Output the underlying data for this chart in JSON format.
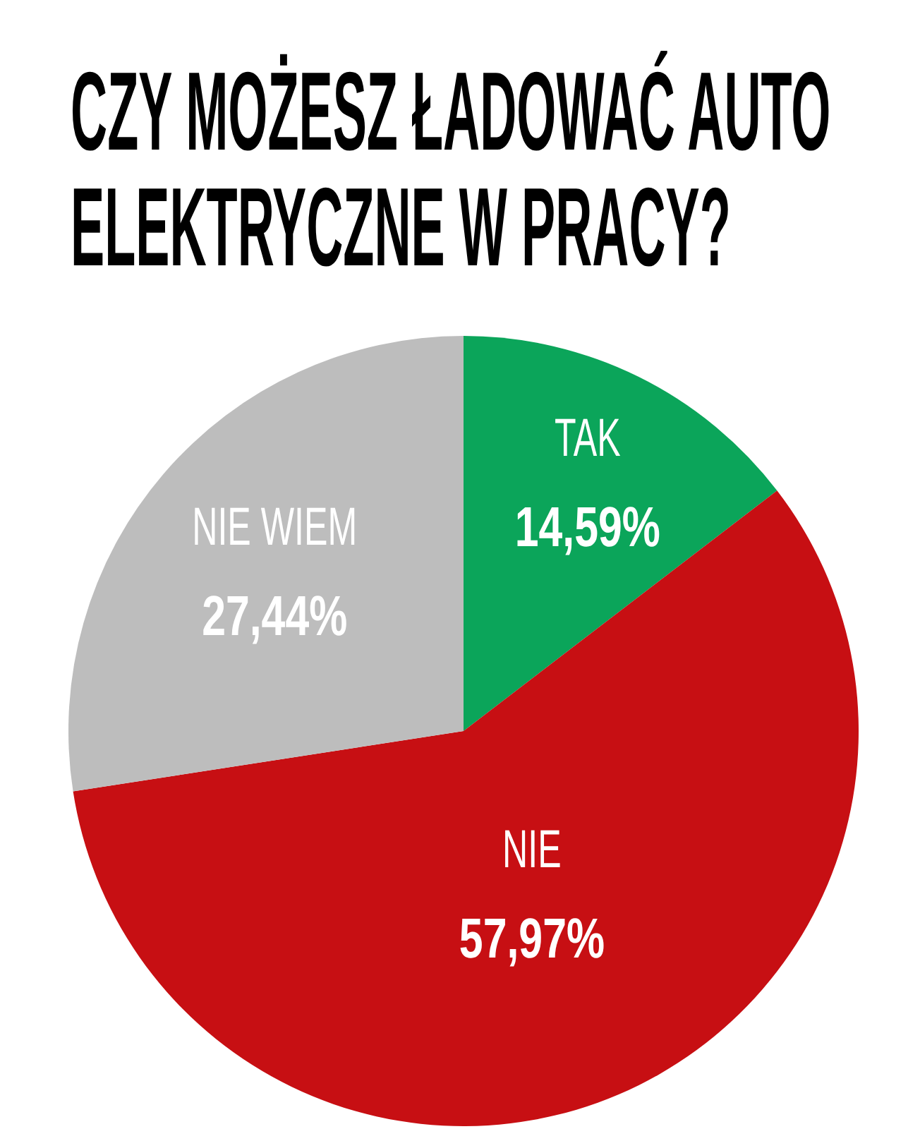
{
  "chart_data": {
    "type": "pie",
    "title": "CZY MOŻESZ ŁADOWAĆ AUTO ELEKTRYCZNE W PRACY?",
    "categories": [
      "TAK",
      "NIE",
      "NIE WIEM"
    ],
    "values": [
      14.59,
      57.97,
      27.44
    ],
    "colors": [
      "#0ba55a",
      "#c70f13",
      "#bdbdbd"
    ],
    "value_labels": [
      "14,59%",
      "57,97%",
      "27,44%"
    ]
  }
}
